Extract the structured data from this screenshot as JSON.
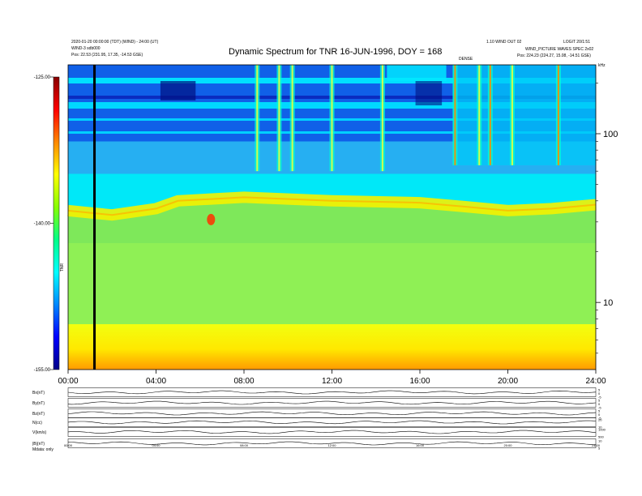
{
  "header": {
    "left_line1": "2020-01-20 00:00:00 (TDT) (WIND) - 24:00 (UT)",
    "left_line2": "WIND-3 sdb000",
    "left_line3": "Pos: 22.53 (231.95, 17.35, -14.53 GSE)",
    "right_line1": "1.10 WIND OUT 02",
    "right_line2": "LOGIT 20/1:51",
    "right_line3": "WIND_PICTURE WAVES SPEC 2x02",
    "right_line4": "Pos: 224.23 (224.27, 15.08, -14.51 GSE)",
    "top_mark": "DENSE",
    "corner_unit": "kHz",
    "bottom_left": "Mdata: only"
  },
  "chart_data": {
    "type": "heatmap",
    "title": "Dynamic Spectrum for TNR 16-JUN-1996, DOY = 168",
    "xlabel": "",
    "ylabel": "",
    "x_ticks": [
      "00:00",
      "04:00",
      "08:00",
      "12:00",
      "16:00",
      "20:00",
      "24:00"
    ],
    "xlim_hours": [
      0,
      24
    ],
    "y_scale": "log",
    "y_ticks": [
      "100",
      "10"
    ],
    "ylim_khz": [
      4,
      256
    ],
    "colorbar": {
      "label": "TNR",
      "ticks": [
        "-125.00",
        "-140.00",
        "-155.00"
      ],
      "range_db": [
        -155,
        -125
      ],
      "colors": [
        "#000088",
        "#0000ff",
        "#0088ff",
        "#00ffff",
        "#00ff88",
        "#88ff00",
        "#ffff00",
        "#ff8800",
        "#ff0000",
        "#880000"
      ]
    },
    "marker_time_hours": 1.2,
    "dense_band": {
      "start_hours": 17.5,
      "end_hours": 24,
      "upper_khz": 256,
      "lower_khz": 65
    },
    "plasma_line_khz": [
      {
        "t": 0,
        "f": 35
      },
      {
        "t": 2,
        "f": 33
      },
      {
        "t": 4,
        "f": 36
      },
      {
        "t": 5,
        "f": 40
      },
      {
        "t": 8,
        "f": 42
      },
      {
        "t": 12,
        "f": 40
      },
      {
        "t": 16,
        "f": 39
      },
      {
        "t": 18,
        "f": 37
      },
      {
        "t": 20,
        "f": 35
      },
      {
        "t": 22,
        "f": 36
      },
      {
        "t": 24,
        "f": 38
      }
    ],
    "emission_bursts_hours": [
      8.6,
      9.6,
      10.2,
      12.0,
      14.3,
      17.6,
      18.7,
      19.2,
      20.2,
      22.3
    ],
    "aux_panels": [
      {
        "label": "Bx(nT)",
        "ticks": [
          "5",
          "0",
          "-5"
        ]
      },
      {
        "label": "By(nT)",
        "ticks": [
          "5",
          "0",
          "-5"
        ]
      },
      {
        "label": "Bz(nT)",
        "ticks": [
          "5",
          "0",
          "-5"
        ]
      },
      {
        "label": "N(cc)",
        "ticks": [
          "20",
          "10"
        ]
      },
      {
        "label": "V(km/s)",
        "ticks": [
          "1000",
          "500"
        ]
      },
      {
        "label": "|B|(nT)",
        "ticks": [
          "10",
          "5"
        ]
      }
    ],
    "aux_x_ticks": [
      "00:00",
      "04:00",
      "08:00",
      "12:00",
      "16:00",
      "20:00",
      "24:00"
    ]
  }
}
